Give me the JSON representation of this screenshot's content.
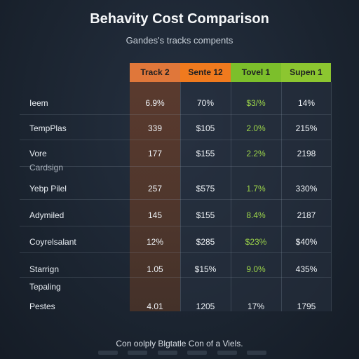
{
  "chart_data": {
    "type": "table",
    "title": "Behavity Cost Comparison",
    "subtitle": "Gandes's tracks compents",
    "columns": [
      "Track 2",
      "Sente 12",
      "Tovel 1",
      "Supen 1"
    ],
    "rows": [
      {
        "label": "Ieem",
        "values": [
          "6.9%",
          "70%",
          "$3/%",
          "14%"
        ]
      },
      {
        "label": "TempPlas",
        "values": [
          "339",
          "$105",
          "2.0%",
          "215%"
        ]
      },
      {
        "label": "Vore",
        "sublabel": "Cardsign",
        "values": [
          "177",
          "$155",
          "2.2%",
          "2198"
        ]
      },
      {
        "label": "Yebp Pilel",
        "values": [
          "257",
          "$575",
          "1.7%",
          "330%"
        ]
      },
      {
        "label": "Adymiled",
        "values": [
          "145",
          "$155",
          "8.4%",
          "2187"
        ]
      },
      {
        "label": "Coyrelsalant",
        "values": [
          "12%",
          "$285",
          "$23%",
          "$40%"
        ]
      },
      {
        "label": "Starrign",
        "values": [
          "1.05",
          "$15%",
          "9.0%",
          "435%"
        ]
      },
      {
        "label": "Tepaling",
        "sublabel": "Pestes",
        "values": [
          "4.01",
          "1205",
          "17%",
          "1795"
        ]
      }
    ],
    "highlight_green_column": 2,
    "colors": {
      "track": "#e0773a",
      "sente": "#f07a1e",
      "tovel": "#7cbf2b",
      "supen": "#8cc630",
      "green_text": "#9bd34a"
    }
  },
  "footnote": "Con oolply Blgtatle Con of a Viels."
}
